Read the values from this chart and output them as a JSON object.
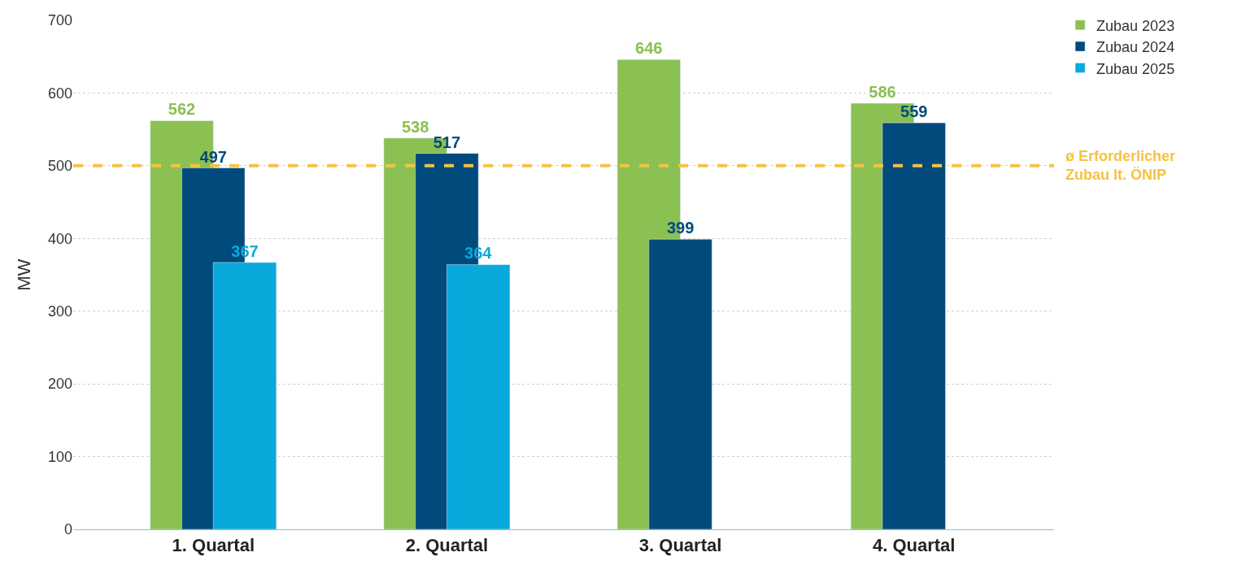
{
  "chart_data": {
    "type": "bar",
    "ylabel": "MW",
    "categories": [
      "1. Quartal",
      "2. Quartal",
      "3. Quartal",
      "4. Quartal"
    ],
    "series": [
      {
        "name": "Zubau 2023",
        "color": "#8bc053",
        "values": [
          562,
          538,
          646,
          586
        ]
      },
      {
        "name": "Zubau 2024",
        "color": "#004a7c",
        "values": [
          497,
          517,
          399,
          559
        ]
      },
      {
        "name": "Zubau 2025",
        "color": "#0aa9dc",
        "values": [
          367,
          364,
          null,
          null
        ]
      }
    ],
    "ylim": [
      0,
      700
    ],
    "yticks": [
      0,
      100,
      200,
      300,
      400,
      500,
      600,
      700
    ],
    "ref_lines": [
      {
        "axis": "y",
        "value": 500,
        "label": "ø Erforderlicher\nZubau lt. ÖNIP",
        "color": "#f5c242",
        "line_style": "dashed"
      }
    ],
    "data_labels": true,
    "grid": "y",
    "legend": "top right"
  }
}
